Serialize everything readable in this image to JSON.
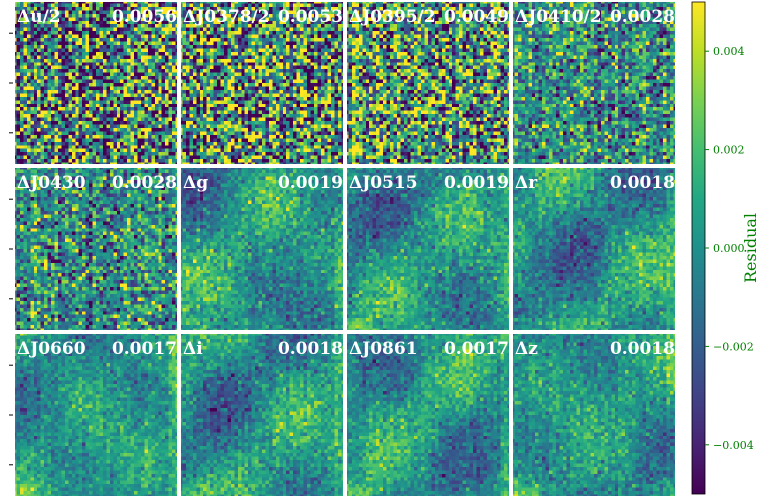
{
  "chart_data": {
    "type": "heatmap",
    "panels": [
      {
        "label": "Δu/2",
        "value": "0.0056",
        "std": 0.0056,
        "pattern": "noise"
      },
      {
        "label": "ΔJ0378/2",
        "value": "0.0053",
        "std": 0.0053,
        "pattern": "noise"
      },
      {
        "label": "ΔJ0395/2",
        "value": "0.0049",
        "std": 0.0049,
        "pattern": "noise"
      },
      {
        "label": "ΔJ0410/2",
        "value": "0.0028",
        "std": 0.0028,
        "pattern": "noise"
      },
      {
        "label": "ΔJ0430",
        "value": "0.0028",
        "std": 0.0028,
        "pattern": "noise"
      },
      {
        "label": "Δg",
        "value": "0.0019",
        "std": 0.0019,
        "pattern": "smooth"
      },
      {
        "label": "ΔJ0515",
        "value": "0.0019",
        "std": 0.0019,
        "pattern": "smooth"
      },
      {
        "label": "Δr",
        "value": "0.0018",
        "std": 0.0018,
        "pattern": "smooth"
      },
      {
        "label": "ΔJ0660",
        "value": "0.0017",
        "std": 0.0017,
        "pattern": "smooth"
      },
      {
        "label": "Δi",
        "value": "0.0018",
        "std": 0.0018,
        "pattern": "smooth"
      },
      {
        "label": "ΔJ0861",
        "value": "0.0017",
        "std": 0.0017,
        "pattern": "smooth"
      },
      {
        "label": "Δz",
        "value": "0.0018",
        "std": 0.0018,
        "pattern": "smooth"
      }
    ],
    "grid": {
      "rows": 3,
      "cols": 4
    },
    "colorbar": {
      "label": "Residual",
      "vmin": -0.005,
      "vmax": 0.005,
      "ticks": [
        0.004,
        0.002,
        0.0,
        -0.002,
        -0.004
      ],
      "tick_labels": [
        "0.004",
        "0.002",
        "0.000",
        "−0.002",
        "−0.004"
      ],
      "colormap": "viridis",
      "label_color": "#008000",
      "tick_color": "#008000"
    }
  }
}
